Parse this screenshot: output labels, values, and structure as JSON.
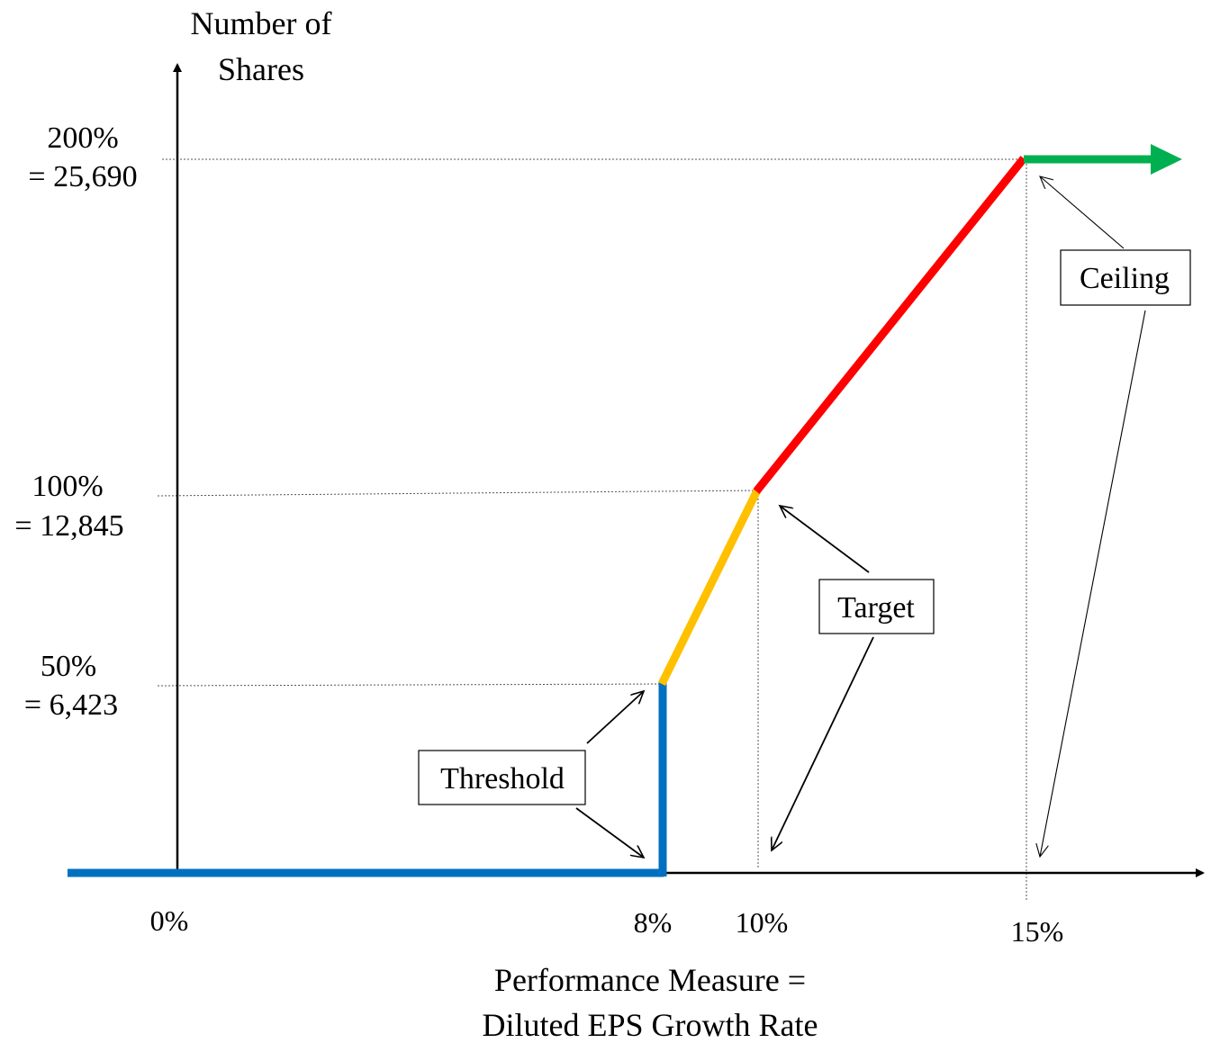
{
  "y_axis": {
    "title_line1": "Number of",
    "title_line2": "Shares",
    "levels": [
      {
        "percent_label": "200%",
        "shares_label": "= 25,690",
        "percent": 200,
        "shares": 25690
      },
      {
        "percent_label": "100%",
        "shares_label": "= 12,845",
        "percent": 100,
        "shares": 12845
      },
      {
        "percent_label": "50%",
        "shares_label": "= 6,423",
        "percent": 50,
        "shares": 6423
      }
    ]
  },
  "x_axis": {
    "title_line1": "Performance Measure =",
    "title_line2": "Diluted EPS Growth Rate",
    "ticks": [
      {
        "label": "0%",
        "value": 0
      },
      {
        "label": "8%",
        "value": 8
      },
      {
        "label": "10%",
        "value": 10
      },
      {
        "label": "15%",
        "value": 15
      }
    ]
  },
  "callouts": {
    "threshold": "Threshold",
    "target": "Target",
    "ceiling": "Ceiling"
  },
  "colors": {
    "axis": "#000000",
    "below_threshold_segment": "#0070C0",
    "threshold_to_target_segment": "#FFC000",
    "target_to_ceiling_segment": "#FF0000",
    "above_ceiling_segment": "#00B050",
    "guide_lines": "#555555"
  },
  "payout_curve": {
    "points": [
      {
        "eps_growth": 0,
        "percent": 0
      },
      {
        "eps_growth": 8,
        "percent": 0
      },
      {
        "eps_growth": 8,
        "percent": 50
      },
      {
        "eps_growth": 10,
        "percent": 100
      },
      {
        "eps_growth": 15,
        "percent": 200
      }
    ],
    "above_ceiling_percent": 200
  }
}
